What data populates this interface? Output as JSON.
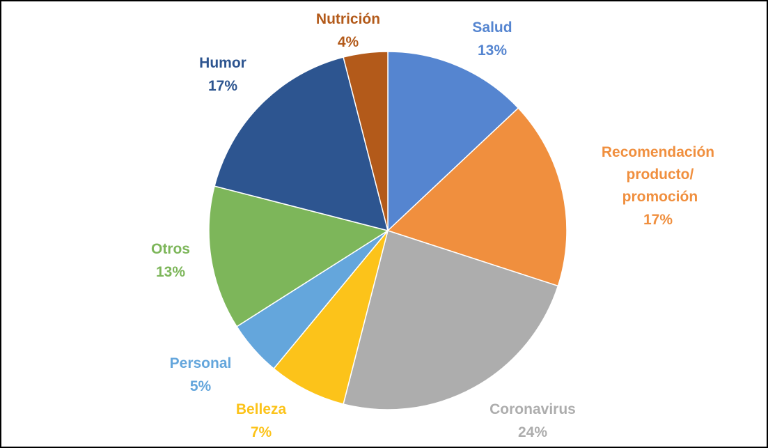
{
  "chart_data": {
    "type": "pie",
    "categories": [
      "Salud",
      "Recomendación producto/ promoción",
      "Coronavirus",
      "Belleza",
      "Personal",
      "Otros",
      "Humor",
      "Nutrición"
    ],
    "values": [
      13,
      17,
      24,
      7,
      5,
      13,
      17,
      4
    ],
    "value_labels": [
      "13%",
      "17%",
      "24%",
      "7%",
      "5%",
      "13%",
      "17%",
      "4%"
    ],
    "colors": [
      "#5585d0",
      "#f08f3e",
      "#adadad",
      "#fcc31a",
      "#64a6dc",
      "#7db65a",
      "#2d5590",
      "#b35a1a"
    ]
  }
}
